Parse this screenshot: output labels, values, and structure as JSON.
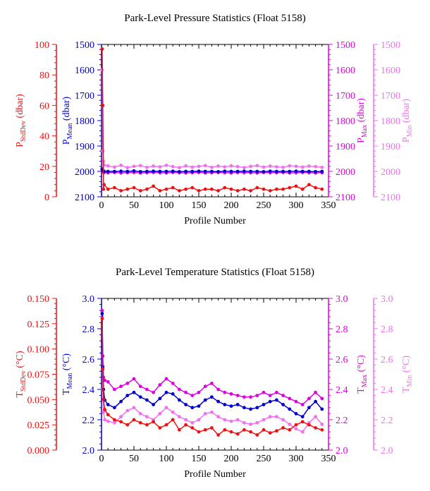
{
  "colors": {
    "stddev": "#ee1111",
    "mean": "#0000cc",
    "max": "#e000e0",
    "min": "#f070f0",
    "text": "#000000"
  },
  "chart_data": [
    {
      "type": "scatter",
      "title": "Park-Level Pressure Statistics (Float 5158)",
      "xlabel": "Profile Number",
      "xlim": [
        0,
        350
      ],
      "x_ticks": [
        "0",
        "50",
        "100",
        "150",
        "200",
        "250",
        "300",
        "350"
      ],
      "axes": {
        "stddev": {
          "label_main": "P",
          "label_sub": "StdDev",
          "label_unit": " (dbar)",
          "ylim": [
            0,
            100
          ],
          "reversed": false,
          "ticks": [
            "0",
            "20",
            "40",
            "60",
            "80",
            "100"
          ]
        },
        "mean": {
          "label_main": "P",
          "label_sub": "Mean",
          "label_unit": " (dbar)",
          "ylim": [
            1500,
            2100
          ],
          "reversed": true,
          "ticks": [
            "1500",
            "1600",
            "1700",
            "1800",
            "1900",
            "2000",
            "2100"
          ]
        },
        "max": {
          "label_main": "P",
          "label_sub": "Max",
          "label_unit": " (dbar)",
          "ylim": [
            1500,
            2100
          ],
          "reversed": true,
          "ticks": [
            "1500",
            "1600",
            "1700",
            "1800",
            "1900",
            "2000",
            "2100"
          ]
        },
        "min": {
          "label_main": "P",
          "label_sub": "Min",
          "label_unit": " (dbar)",
          "ylim": [
            1500,
            2100
          ],
          "reversed": true,
          "ticks": [
            "1500",
            "1600",
            "1700",
            "1800",
            "1900",
            "2000",
            "2100"
          ]
        }
      },
      "series": [
        {
          "key": "stddev",
          "x": [
            1,
            2,
            3,
            4,
            10,
            20,
            30,
            40,
            50,
            60,
            70,
            80,
            90,
            100,
            110,
            120,
            130,
            140,
            150,
            160,
            170,
            180,
            190,
            200,
            210,
            220,
            230,
            240,
            250,
            260,
            270,
            280,
            290,
            300,
            310,
            320,
            330,
            340
          ],
          "values": [
            97,
            60,
            5,
            8,
            5,
            6,
            4,
            5,
            6,
            4,
            5,
            7,
            4,
            5,
            6,
            4,
            5,
            6,
            4,
            5,
            5,
            4,
            6,
            5,
            4,
            5,
            4,
            6,
            5,
            4,
            5,
            5,
            6,
            7,
            5,
            8,
            6,
            5
          ]
        },
        {
          "key": "mean",
          "x": [
            1,
            2,
            3,
            4,
            10,
            20,
            30,
            40,
            50,
            60,
            70,
            80,
            90,
            100,
            110,
            120,
            130,
            140,
            150,
            160,
            170,
            180,
            190,
            200,
            210,
            220,
            230,
            240,
            250,
            260,
            270,
            280,
            290,
            300,
            310,
            320,
            330,
            340
          ],
          "values": [
            1990,
            1996,
            1998,
            2000,
            2000,
            2000,
            1999,
            2000,
            1998,
            2001,
            2000,
            1999,
            2000,
            2000,
            1999,
            2001,
            2000,
            2000,
            1999,
            2000,
            2000,
            2001,
            1999,
            2000,
            2000,
            1999,
            2000,
            2000,
            2001,
            1999,
            2000,
            2000,
            2000,
            1999,
            2000,
            2000,
            2001,
            2000
          ]
        },
        {
          "key": "max",
          "x": [
            1,
            2,
            3,
            4,
            10,
            20,
            30,
            40,
            50,
            60,
            70,
            80,
            90,
            100,
            110,
            120,
            130,
            140,
            150,
            160,
            170,
            180,
            190,
            200,
            210,
            220,
            230,
            240,
            250,
            260,
            270,
            280,
            290,
            300,
            310,
            320,
            330,
            340
          ],
          "values": [
            1995,
            2000,
            2003,
            2004,
            2005,
            2004,
            2006,
            2005,
            2004,
            2006,
            2005,
            2004,
            2005,
            2006,
            2004,
            2005,
            2006,
            2005,
            2004,
            2006,
            2005,
            2004,
            2005,
            2006,
            2004,
            2005,
            2005,
            2006,
            2004,
            2005,
            2005,
            2004,
            2006,
            2005,
            2004,
            2005,
            2006,
            2005
          ]
        },
        {
          "key": "min",
          "x": [
            1,
            2,
            3,
            4,
            10,
            20,
            30,
            40,
            50,
            60,
            70,
            80,
            90,
            100,
            110,
            120,
            130,
            140,
            150,
            160,
            170,
            180,
            190,
            200,
            210,
            220,
            230,
            240,
            250,
            260,
            270,
            280,
            290,
            300,
            310,
            320,
            330,
            340
          ],
          "values": [
            1600,
            1920,
            1960,
            1975,
            1978,
            1983,
            1976,
            1985,
            1980,
            1977,
            1984,
            1979,
            1982,
            1976,
            1981,
            1985,
            1978,
            1983,
            1980,
            1977,
            1984,
            1979,
            1982,
            1978,
            1981,
            1985,
            1980,
            1977,
            1983,
            1979,
            1982,
            1984,
            1978,
            1980,
            1983,
            1979,
            1981,
            1984
          ]
        }
      ]
    },
    {
      "type": "scatter",
      "title": "Park-Level Temperature Statistics (Float 5158)",
      "xlabel": "Profile Number",
      "xlim": [
        0,
        350
      ],
      "x_ticks": [
        "0",
        "50",
        "100",
        "150",
        "200",
        "250",
        "300",
        "350"
      ],
      "axes": {
        "stddev": {
          "label_main": "T",
          "label_sub": "StdDev",
          "label_unit": " (°C)",
          "ylim": [
            0,
            0.15
          ],
          "reversed": false,
          "ticks": [
            "0.000",
            "0.025",
            "0.050",
            "0.075",
            "0.100",
            "0.125",
            "0.150"
          ]
        },
        "mean": {
          "label_main": "T",
          "label_sub": "Mean",
          "label_unit": " (°C)",
          "ylim": [
            2.0,
            3.0
          ],
          "reversed": false,
          "ticks": [
            "2.0",
            "2.2",
            "2.4",
            "2.6",
            "2.8",
            "3.0"
          ]
        },
        "max": {
          "label_main": "T",
          "label_sub": "Max",
          "label_unit": " (°C)",
          "ylim": [
            2.0,
            3.0
          ],
          "reversed": false,
          "ticks": [
            "2.0",
            "2.2",
            "2.4",
            "2.6",
            "2.8",
            "3.0"
          ]
        },
        "min": {
          "label_main": "T",
          "label_sub": "Min",
          "label_unit": " (°C)",
          "ylim": [
            2.0,
            3.0
          ],
          "reversed": false,
          "ticks": [
            "2.0",
            "2.2",
            "2.4",
            "2.6",
            "2.8",
            "3.0"
          ]
        }
      },
      "series": [
        {
          "key": "stddev",
          "x": [
            1,
            2,
            3,
            5,
            10,
            20,
            30,
            40,
            50,
            60,
            70,
            80,
            90,
            100,
            110,
            120,
            130,
            140,
            150,
            160,
            170,
            180,
            190,
            200,
            210,
            220,
            230,
            240,
            250,
            260,
            270,
            280,
            290,
            300,
            310,
            320,
            330,
            340
          ],
          "values": [
            0.13,
            0.08,
            0.05,
            0.04,
            0.035,
            0.03,
            0.028,
            0.025,
            0.03,
            0.027,
            0.025,
            0.028,
            0.022,
            0.025,
            0.03,
            0.02,
            0.025,
            0.022,
            0.018,
            0.02,
            0.022,
            0.015,
            0.02,
            0.018,
            0.016,
            0.02,
            0.018,
            0.015,
            0.02,
            0.017,
            0.019,
            0.022,
            0.02,
            0.025,
            0.028,
            0.025,
            0.022,
            0.02
          ]
        },
        {
          "key": "mean",
          "x": [
            1,
            2,
            3,
            5,
            10,
            20,
            30,
            40,
            50,
            60,
            70,
            80,
            90,
            100,
            110,
            120,
            130,
            140,
            150,
            160,
            170,
            180,
            190,
            200,
            210,
            220,
            230,
            240,
            250,
            260,
            270,
            280,
            290,
            300,
            310,
            320,
            330,
            340
          ],
          "values": [
            2.9,
            2.55,
            2.4,
            2.33,
            2.3,
            2.28,
            2.32,
            2.36,
            2.38,
            2.35,
            2.33,
            2.3,
            2.34,
            2.38,
            2.37,
            2.33,
            2.3,
            2.28,
            2.29,
            2.33,
            2.35,
            2.32,
            2.3,
            2.29,
            2.3,
            2.28,
            2.27,
            2.28,
            2.3,
            2.32,
            2.33,
            2.3,
            2.27,
            2.24,
            2.22,
            2.28,
            2.32,
            2.27
          ]
        },
        {
          "key": "max",
          "x": [
            1,
            2,
            3,
            5,
            10,
            20,
            30,
            40,
            50,
            60,
            70,
            80,
            90,
            100,
            110,
            120,
            130,
            140,
            150,
            160,
            170,
            180,
            190,
            200,
            210,
            220,
            230,
            240,
            250,
            260,
            270,
            280,
            290,
            300,
            310,
            320,
            330,
            340
          ],
          "values": [
            2.92,
            2.62,
            2.48,
            2.46,
            2.45,
            2.4,
            2.42,
            2.44,
            2.47,
            2.42,
            2.4,
            2.38,
            2.43,
            2.47,
            2.44,
            2.4,
            2.38,
            2.36,
            2.38,
            2.42,
            2.44,
            2.4,
            2.38,
            2.37,
            2.36,
            2.35,
            2.35,
            2.36,
            2.38,
            2.36,
            2.38,
            2.36,
            2.34,
            2.32,
            2.3,
            2.34,
            2.38,
            2.34
          ]
        },
        {
          "key": "min",
          "x": [
            1,
            2,
            3,
            5,
            10,
            20,
            30,
            40,
            50,
            60,
            70,
            80,
            90,
            100,
            110,
            120,
            130,
            140,
            150,
            160,
            170,
            180,
            190,
            200,
            210,
            220,
            230,
            240,
            250,
            260,
            270,
            280,
            290,
            300,
            310,
            320,
            330,
            340
          ],
          "values": [
            2.88,
            2.4,
            2.25,
            2.2,
            2.19,
            2.18,
            2.22,
            2.26,
            2.28,
            2.24,
            2.22,
            2.2,
            2.24,
            2.28,
            2.25,
            2.22,
            2.2,
            2.18,
            2.2,
            2.24,
            2.25,
            2.22,
            2.2,
            2.19,
            2.2,
            2.18,
            2.17,
            2.18,
            2.2,
            2.22,
            2.22,
            2.2,
            2.17,
            2.14,
            2.12,
            2.18,
            2.22,
            2.17
          ]
        }
      ]
    }
  ]
}
